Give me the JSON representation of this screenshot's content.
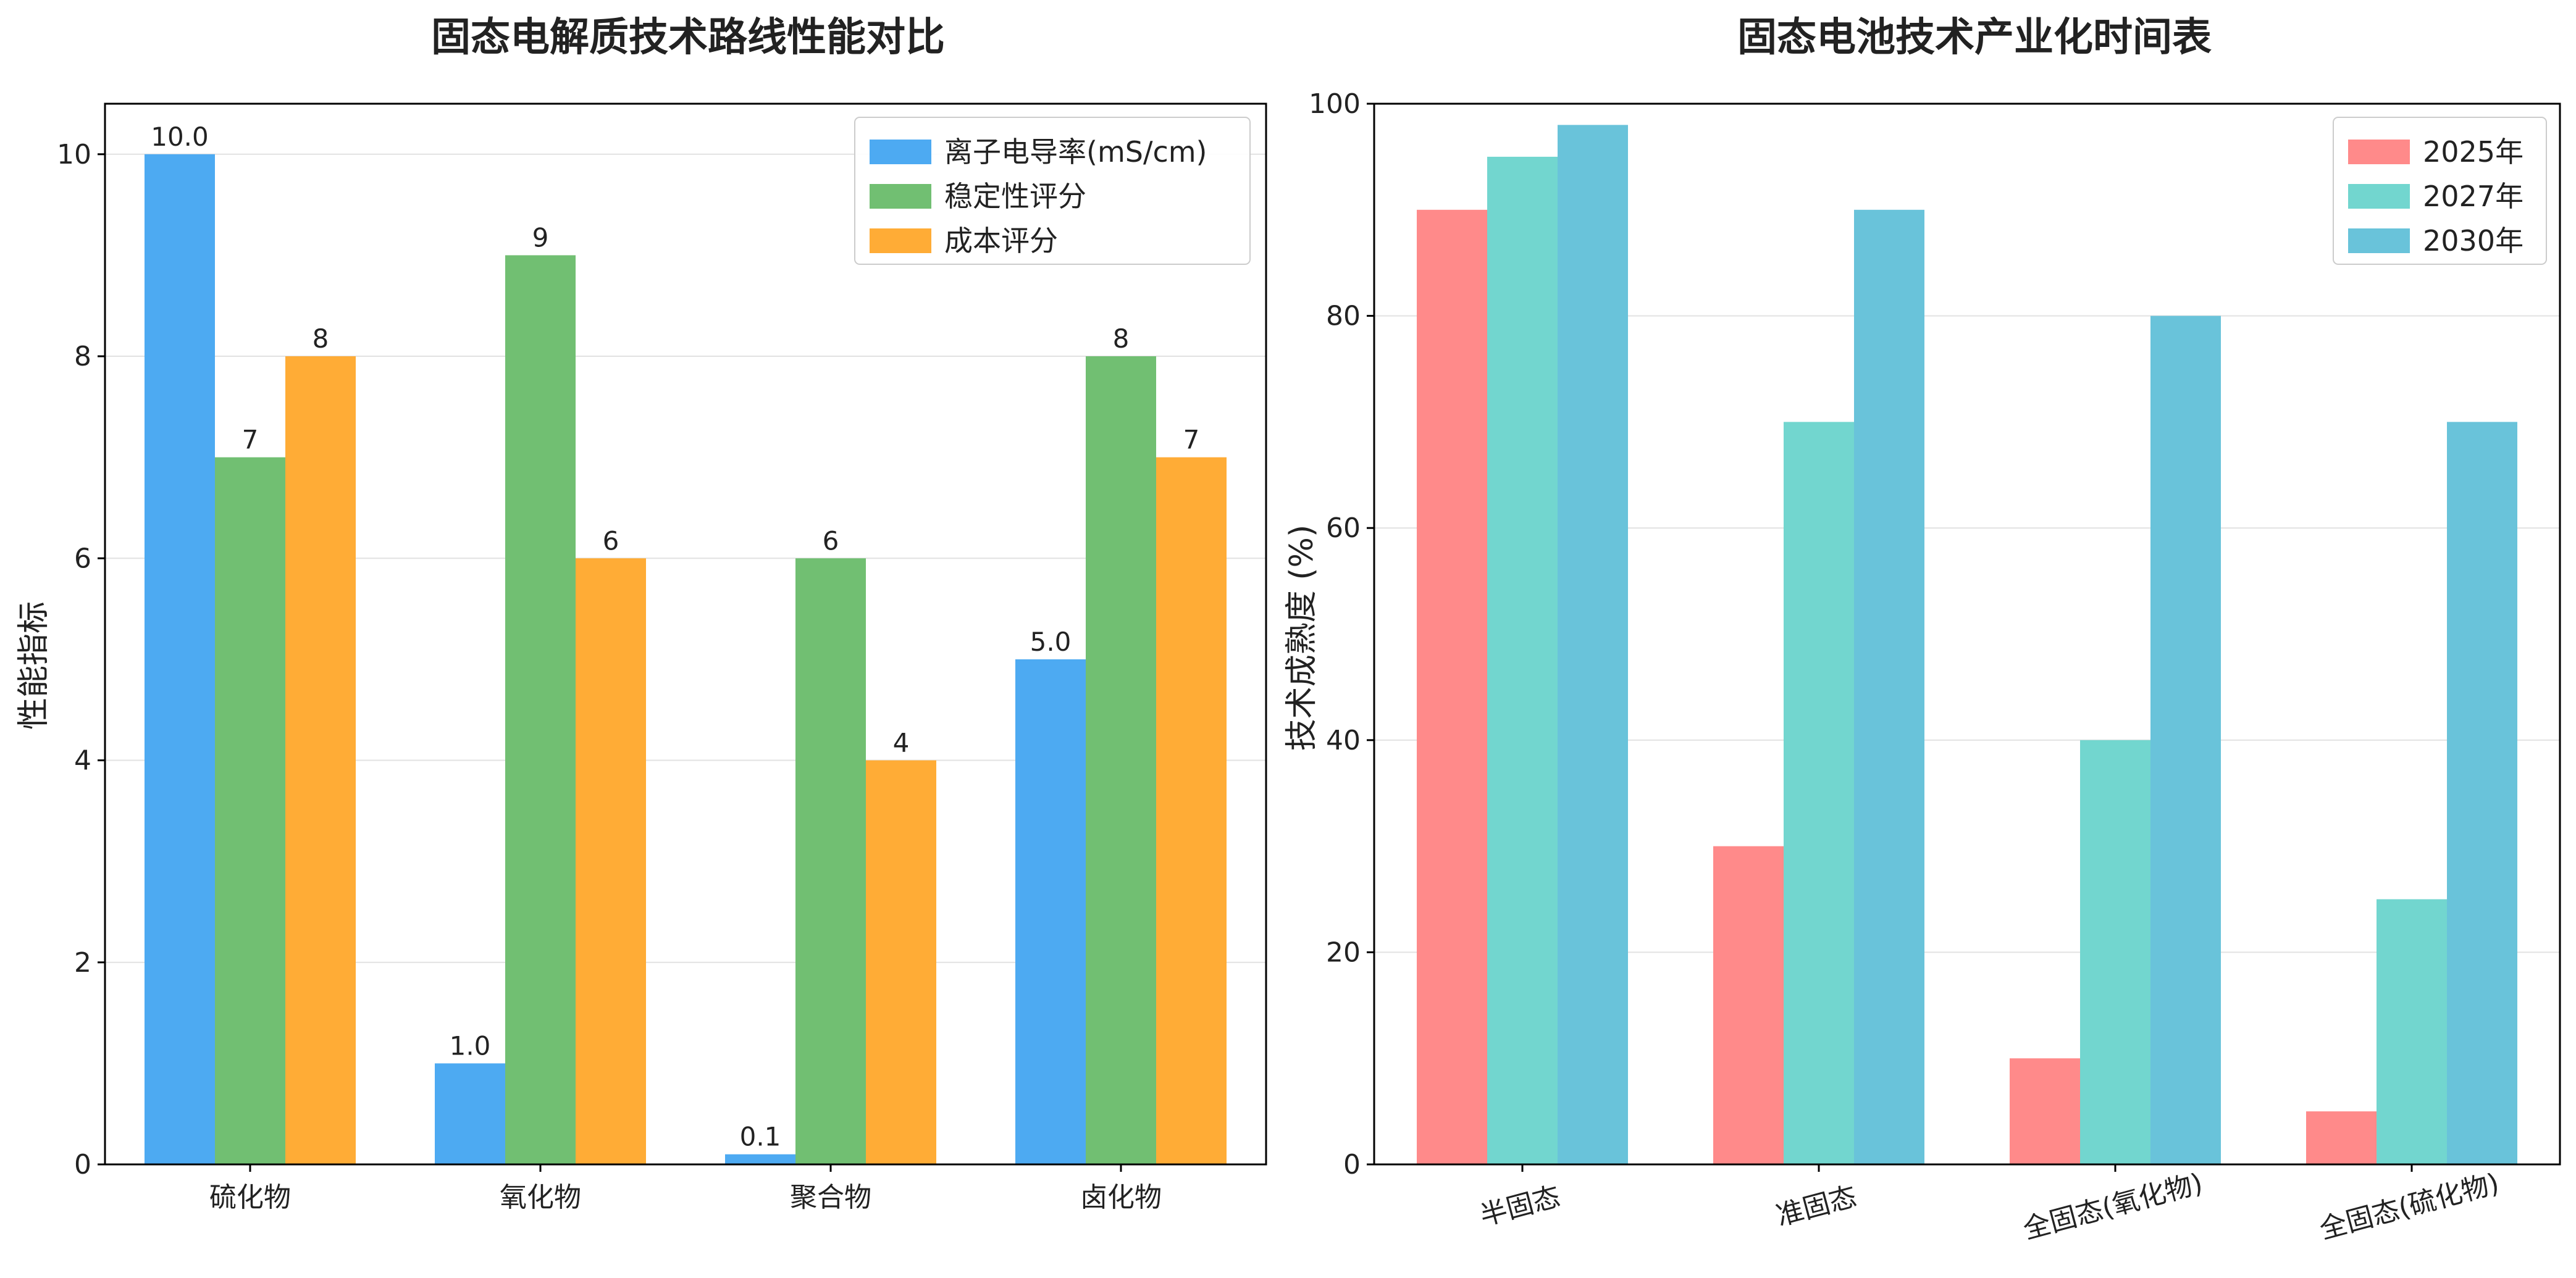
{
  "chart_data": [
    {
      "type": "bar",
      "title": "固态电解质技术路线性能对比",
      "xlabel": "",
      "ylabel": "性能指标",
      "categories": [
        "硫化物",
        "氧化物",
        "聚合物",
        "卤化物"
      ],
      "series": [
        {
          "name": "离子电导率(mS/cm)",
          "values": [
            10.0,
            1.0,
            0.1,
            5.0
          ],
          "labels": [
            "10.0",
            "1.0",
            "0.1",
            "5.0"
          ],
          "color": "#4DAAF2"
        },
        {
          "name": "稳定性评分",
          "values": [
            7,
            9,
            6,
            8
          ],
          "labels": [
            "7",
            "9",
            "6",
            "8"
          ],
          "color": "#71BF72"
        },
        {
          "name": "成本评分",
          "values": [
            8,
            6,
            4,
            7
          ],
          "labels": [
            "8",
            "6",
            "4",
            "7"
          ],
          "color": "#FFAC36"
        }
      ],
      "ylim": [
        0,
        10.5
      ],
      "yticks": [
        0,
        2,
        4,
        6,
        8,
        10
      ],
      "grid": "y",
      "legend": "top-right",
      "tick_rotation": 0
    },
    {
      "type": "bar",
      "title": "固态电池技术产业化时间表",
      "xlabel": "",
      "ylabel": "技术成熟度 (%)",
      "categories": [
        "半固态",
        "准固态",
        "全固态(氧化物)",
        "全固态(硫化物)"
      ],
      "series": [
        {
          "name": "2025年",
          "values": [
            90,
            30,
            10,
            5
          ],
          "color": "#FF8A8A"
        },
        {
          "name": "2027年",
          "values": [
            95,
            70,
            40,
            25
          ],
          "color": "#72D6CF"
        },
        {
          "name": "2030年",
          "values": [
            98,
            90,
            80,
            70
          ],
          "color": "#69C3DA"
        }
      ],
      "ylim": [
        0,
        100
      ],
      "yticks": [
        0,
        20,
        40,
        60,
        80,
        100
      ],
      "grid": "y",
      "legend": "top-right",
      "tick_rotation": -15
    }
  ]
}
